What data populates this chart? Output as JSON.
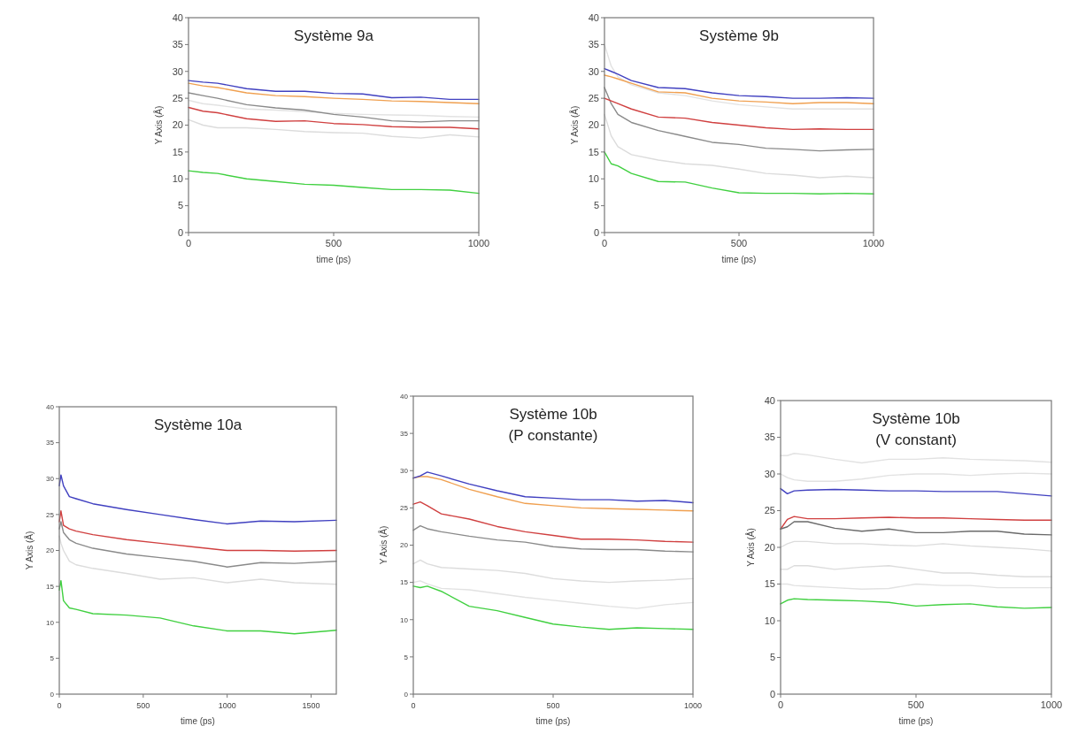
{
  "chart_data": [
    {
      "type": "line",
      "title": "Système 9a",
      "xlabel": "time (ps)",
      "ylabel": "Y Axis (Å)",
      "x": [
        0,
        50,
        100,
        200,
        300,
        400,
        500,
        600,
        700,
        800,
        900,
        1000
      ],
      "xlim": [
        0,
        1000
      ],
      "xticks": [
        0,
        500,
        1000
      ],
      "ylim": [
        0,
        40
      ],
      "yticks": [
        0,
        5,
        10,
        15,
        20,
        25,
        30,
        35,
        40
      ],
      "grid": false,
      "marker": "none",
      "line_style": "solid",
      "series": [
        {
          "color": "#dcdcdc",
          "values": [
            21,
            20,
            19.5,
            19.5,
            19.2,
            18.8,
            18.6,
            18.5,
            17.9,
            17.6,
            18.2,
            17.8
          ]
        },
        {
          "color": "#e2e2e2",
          "values": [
            24.6,
            24,
            23.7,
            23,
            22.8,
            22.5,
            22.2,
            22,
            21.9,
            21.8,
            21.6,
            21.5
          ]
        },
        {
          "color": "#8a8a8a",
          "values": [
            26,
            25.5,
            25,
            23.8,
            23.2,
            22.8,
            22,
            21.5,
            20.8,
            20.6,
            20.8,
            20.8
          ]
        },
        {
          "color": "#f0a050",
          "values": [
            27.8,
            27.3,
            27,
            26,
            25.5,
            25.3,
            25,
            24.8,
            24.5,
            24.4,
            24.2,
            24
          ]
        },
        {
          "color": "#4040c0",
          "values": [
            28.3,
            28,
            27.8,
            26.8,
            26.3,
            26.3,
            25.9,
            25.8,
            25.1,
            25.2,
            24.8,
            24.8
          ]
        },
        {
          "color": "#d04040",
          "values": [
            23.3,
            22.6,
            22.3,
            21.2,
            20.7,
            20.8,
            20.3,
            20.1,
            19.7,
            19.6,
            19.6,
            19.3
          ]
        },
        {
          "color": "#40d040",
          "values": [
            11.5,
            11.2,
            11,
            10,
            9.5,
            9,
            8.8,
            8.4,
            8,
            8,
            7.9,
            7.3
          ]
        }
      ]
    },
    {
      "type": "line",
      "title": "Système 9b",
      "xlabel": "time (ps)",
      "ylabel": "Y Axis (Å)",
      "x": [
        0,
        25,
        50,
        100,
        200,
        300,
        400,
        500,
        600,
        700,
        800,
        900,
        1000
      ],
      "xlim": [
        0,
        1000
      ],
      "xticks": [
        0,
        500,
        1000
      ],
      "ylim": [
        0,
        40
      ],
      "yticks": [
        0,
        5,
        10,
        15,
        20,
        25,
        30,
        35,
        40
      ],
      "grid": false,
      "marker": "none",
      "line_style": "solid",
      "series": [
        {
          "color": "#e2e2e2",
          "values": [
            35,
            31,
            29,
            27.5,
            26,
            25.5,
            24.5,
            23.8,
            23.4,
            23,
            23,
            23,
            23
          ]
        },
        {
          "color": "#dcdcdc",
          "values": [
            22,
            18,
            16,
            14.5,
            13.5,
            12.8,
            12.5,
            11.8,
            11,
            10.7,
            10.2,
            10.5,
            10.2
          ]
        },
        {
          "color": "#8a8a8a",
          "values": [
            27,
            24,
            22,
            20.5,
            19,
            17.9,
            16.8,
            16.4,
            15.7,
            15.5,
            15.2,
            15.4,
            15.5
          ]
        },
        {
          "color": "#f0a050",
          "values": [
            29.3,
            29,
            28.6,
            27.8,
            26.2,
            26,
            25,
            24.5,
            24.3,
            24,
            24.2,
            24.2,
            24
          ]
        },
        {
          "color": "#4040c0",
          "values": [
            30.5,
            30,
            29.5,
            28.3,
            27,
            26.8,
            26,
            25.5,
            25.3,
            25,
            25,
            25.1,
            25
          ]
        },
        {
          "color": "#d04040",
          "values": [
            25,
            24.5,
            24,
            23,
            21.5,
            21.3,
            20.5,
            20,
            19.5,
            19.2,
            19.3,
            19.2,
            19.2
          ]
        },
        {
          "color": "#40d040",
          "values": [
            15,
            12.8,
            12.4,
            11,
            9.5,
            9.4,
            8.3,
            7.4,
            7.3,
            7.3,
            7.2,
            7.3,
            7.2
          ]
        }
      ]
    },
    {
      "type": "line",
      "title": "Système 10a",
      "xlabel": "time (ps)",
      "ylabel": "Y Axis (Å)",
      "x": [
        0,
        10,
        25,
        60,
        100,
        200,
        400,
        600,
        800,
        1000,
        1200,
        1400,
        1650
      ],
      "xlim": [
        0,
        1650
      ],
      "xticks": [
        0,
        500,
        1000,
        1500
      ],
      "ylim": [
        0,
        40
      ],
      "yticks": [
        0,
        5,
        10,
        15,
        20,
        25,
        30,
        35,
        40
      ],
      "grid": false,
      "marker": "none",
      "line_style": "solid",
      "series": [
        {
          "color": "#dcdcdc",
          "values": [
            22,
            21,
            20,
            18.5,
            18,
            17.5,
            16.8,
            16,
            16.2,
            15.5,
            16,
            15.5,
            15.3
          ]
        },
        {
          "color": "#8a8a8a",
          "values": [
            23,
            24,
            22.5,
            21.5,
            21,
            20.3,
            19.5,
            19,
            18.5,
            17.7,
            18.3,
            18.2,
            18.5
          ]
        },
        {
          "color": "#4040c0",
          "values": [
            29,
            30.5,
            29,
            27.5,
            27.2,
            26.5,
            25.7,
            25,
            24.3,
            23.7,
            24.1,
            24,
            24.2
          ]
        },
        {
          "color": "#d04040",
          "values": [
            24,
            25.5,
            23.5,
            23,
            22.7,
            22.2,
            21.5,
            21,
            20.5,
            20,
            20,
            19.9,
            20
          ]
        },
        {
          "color": "#40d040",
          "values": [
            14.5,
            15.8,
            13,
            12,
            11.8,
            11.2,
            11,
            10.6,
            9.5,
            8.8,
            8.8,
            8.4,
            8.9
          ]
        }
      ]
    },
    {
      "type": "line",
      "title": "Système 10b",
      "subtitle": "(P constante)",
      "xlabel": "time (ps)",
      "ylabel": "Y Axis (Å)",
      "x": [
        0,
        25,
        50,
        100,
        200,
        300,
        400,
        500,
        600,
        700,
        800,
        900,
        1000
      ],
      "xlim": [
        0,
        1000
      ],
      "xticks": [
        0,
        500,
        1000
      ],
      "ylim": [
        0,
        40
      ],
      "yticks": [
        0,
        5,
        10,
        15,
        20,
        25,
        30,
        35,
        40
      ],
      "grid": false,
      "marker": "none",
      "line_style": "solid",
      "series": [
        {
          "color": "#dcdcdc",
          "values": [
            17.5,
            18,
            17.5,
            17,
            16.8,
            16.6,
            16.2,
            15.5,
            15.2,
            15,
            15.2,
            15.3,
            15.5
          ]
        },
        {
          "color": "#e2e2e2",
          "values": [
            15,
            15.2,
            14.8,
            14.2,
            14,
            13.5,
            13,
            12.6,
            12.2,
            11.8,
            11.5,
            12,
            12.3
          ]
        },
        {
          "color": "#8a8a8a",
          "values": [
            22,
            22.6,
            22.2,
            21.8,
            21.2,
            20.7,
            20.4,
            19.8,
            19.5,
            19.4,
            19.4,
            19.2,
            19.1
          ]
        },
        {
          "color": "#f0a050",
          "values": [
            29,
            29.2,
            29.2,
            28.8,
            27.5,
            26.5,
            25.6,
            25.3,
            25,
            24.9,
            24.8,
            24.7,
            24.6
          ]
        },
        {
          "color": "#4040c0",
          "values": [
            29,
            29.3,
            29.8,
            29.3,
            28.2,
            27.3,
            26.5,
            26.3,
            26.1,
            26.1,
            25.9,
            26,
            25.7
          ]
        },
        {
          "color": "#d04040",
          "values": [
            25.5,
            25.8,
            25.3,
            24.2,
            23.5,
            22.5,
            21.8,
            21.3,
            20.8,
            20.8,
            20.7,
            20.5,
            20.4
          ]
        },
        {
          "color": "#40d040",
          "values": [
            14.5,
            14.3,
            14.5,
            13.8,
            11.8,
            11.2,
            10.3,
            9.4,
            9,
            8.7,
            8.9,
            8.8,
            8.7
          ]
        }
      ]
    },
    {
      "type": "line",
      "title": "Système 10b",
      "subtitle": "(V constant)",
      "xlabel": "time (ps)",
      "ylabel": "Y Axis (Å)",
      "x": [
        0,
        25,
        50,
        100,
        200,
        300,
        400,
        500,
        600,
        700,
        800,
        900,
        1000
      ],
      "xlim": [
        0,
        1000
      ],
      "xticks": [
        0,
        500,
        1000
      ],
      "ylim": [
        0,
        40
      ],
      "yticks": [
        0,
        5,
        10,
        15,
        20,
        25,
        30,
        35,
        40
      ],
      "grid": false,
      "marker": "none",
      "line_style": "solid",
      "series": [
        {
          "color": "#e2e2e2",
          "values": [
            32.5,
            32.5,
            32.8,
            32.6,
            32,
            31.5,
            32,
            32,
            32.2,
            32,
            31.9,
            31.8,
            31.6
          ]
        },
        {
          "color": "#e2e2e2",
          "values": [
            30,
            29.5,
            29.2,
            29,
            29,
            29.3,
            29.8,
            30,
            30,
            29.8,
            30,
            30.1,
            30
          ]
        },
        {
          "color": "#dcdcdc",
          "values": [
            20,
            20.5,
            20.8,
            20.8,
            20.5,
            20.5,
            20.3,
            20.2,
            20.5,
            20.2,
            20,
            19.8,
            19.5
          ]
        },
        {
          "color": "#dcdcdc",
          "values": [
            17,
            17,
            17.5,
            17.5,
            17,
            17.3,
            17.5,
            17,
            16.5,
            16.5,
            16.2,
            16,
            16
          ]
        },
        {
          "color": "#e2e2e2",
          "values": [
            15,
            15,
            14.8,
            14.7,
            14.5,
            14.3,
            14.4,
            15,
            14.8,
            14.8,
            14.5,
            14.5,
            14.5
          ]
        },
        {
          "color": "#4040c0",
          "values": [
            28,
            27.3,
            27.7,
            27.8,
            27.9,
            27.8,
            27.7,
            27.7,
            27.6,
            27.6,
            27.6,
            27.3,
            27
          ]
        },
        {
          "color": "#d04040",
          "values": [
            22.5,
            23.8,
            24.2,
            23.9,
            23.9,
            24,
            24.1,
            24,
            24,
            23.9,
            23.8,
            23.7,
            23.7
          ]
        },
        {
          "color": "#6a6a6a",
          "values": [
            22.5,
            22.8,
            23.5,
            23.5,
            22.6,
            22.2,
            22.5,
            22,
            22,
            22.2,
            22.2,
            21.8,
            21.7
          ]
        },
        {
          "color": "#40d040",
          "values": [
            12.3,
            12.8,
            13,
            12.9,
            12.8,
            12.7,
            12.5,
            12,
            12.2,
            12.3,
            11.9,
            11.7,
            11.8
          ]
        }
      ]
    }
  ]
}
